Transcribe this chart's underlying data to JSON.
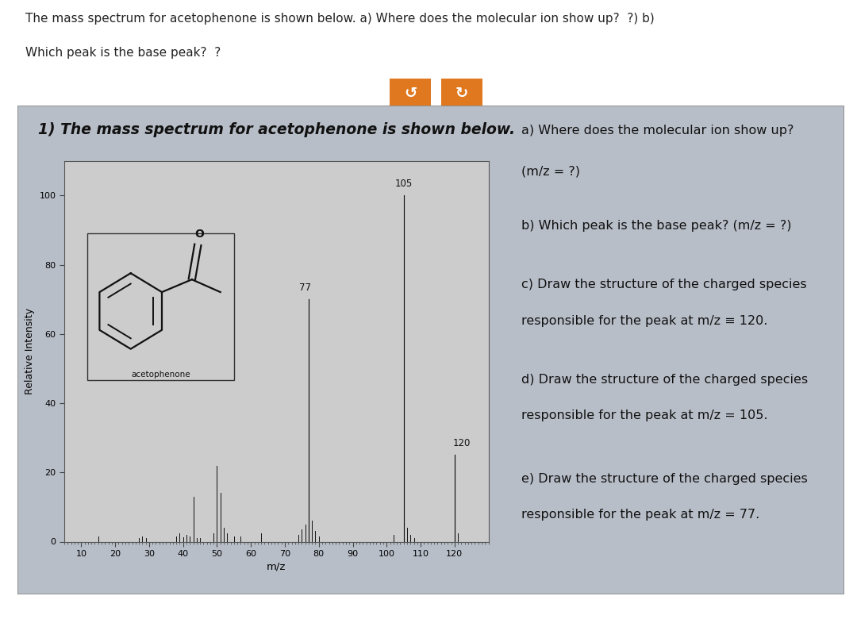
{
  "title_header": "1) The mass spectrum for acetophenone is shown below.",
  "top_text_line1": "The mass spectrum for acetophenone is shown below. a) Where does the molecular ion show up?  ?) b)",
  "top_text_line2": "Which peak is the base peak?  ?",
  "xlabel": "m/z",
  "ylabel": "Relative Intensity",
  "xlim": [
    5,
    130
  ],
  "ylim": [
    0,
    110
  ],
  "yticks": [
    0,
    20,
    40,
    60,
    80,
    100
  ],
  "xticks": [
    10,
    20,
    30,
    40,
    50,
    60,
    70,
    80,
    90,
    100,
    110,
    120
  ],
  "plot_bg_color": "#cccccc",
  "outer_bg": "#ffffff",
  "card_bg": "#b8bec8",
  "peaks_labeled": [
    {
      "mz": 77,
      "intensity": 70,
      "label": "77"
    },
    {
      "mz": 105,
      "intensity": 100,
      "label": "105"
    },
    {
      "mz": 120,
      "intensity": 25,
      "label": "120"
    }
  ],
  "peaks_small": [
    {
      "mz": 15,
      "intensity": 1.5
    },
    {
      "mz": 27,
      "intensity": 1.0
    },
    {
      "mz": 28,
      "intensity": 1.5
    },
    {
      "mz": 29,
      "intensity": 1.0
    },
    {
      "mz": 38,
      "intensity": 1.5
    },
    {
      "mz": 39,
      "intensity": 2.5
    },
    {
      "mz": 40,
      "intensity": 1.2
    },
    {
      "mz": 41,
      "intensity": 2.0
    },
    {
      "mz": 42,
      "intensity": 1.5
    },
    {
      "mz": 43,
      "intensity": 13
    },
    {
      "mz": 44,
      "intensity": 1.0
    },
    {
      "mz": 45,
      "intensity": 1.0
    },
    {
      "mz": 49,
      "intensity": 2.5
    },
    {
      "mz": 50,
      "intensity": 22
    },
    {
      "mz": 51,
      "intensity": 14
    },
    {
      "mz": 52,
      "intensity": 4.0
    },
    {
      "mz": 53,
      "intensity": 2.5
    },
    {
      "mz": 55,
      "intensity": 1.5
    },
    {
      "mz": 57,
      "intensity": 1.5
    },
    {
      "mz": 63,
      "intensity": 2.5
    },
    {
      "mz": 74,
      "intensity": 2.0
    },
    {
      "mz": 75,
      "intensity": 3.5
    },
    {
      "mz": 76,
      "intensity": 5.0
    },
    {
      "mz": 78,
      "intensity": 6.0
    },
    {
      "mz": 79,
      "intensity": 3.0
    },
    {
      "mz": 80,
      "intensity": 1.5
    },
    {
      "mz": 102,
      "intensity": 2.0
    },
    {
      "mz": 106,
      "intensity": 4.0
    },
    {
      "mz": 107,
      "intensity": 2.0
    },
    {
      "mz": 108,
      "intensity": 1.0
    },
    {
      "mz": 121,
      "intensity": 2.5
    }
  ],
  "questions": [
    [
      "a) Where does the molecular ion show up?",
      "(m/z = ?)"
    ],
    [
      "b) Which peak is the base peak? (m/z = ?)"
    ],
    [
      "c) Draw the structure of the charged species",
      "responsible for the peak at m/z ≡ 120."
    ],
    [
      "d) Draw the structure of the charged species",
      "responsible for the peak at m/z = 105."
    ],
    [
      "e) Draw the structure of the charged species",
      "responsible for the peak at m/z = 77."
    ]
  ],
  "line_color": "#111111"
}
